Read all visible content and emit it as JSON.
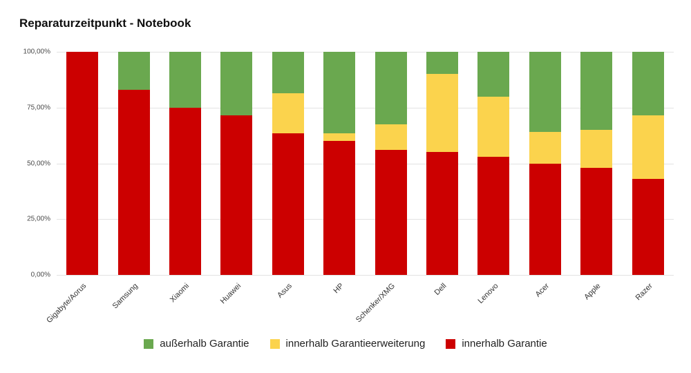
{
  "title": "Reparaturzeitpunkt - Notebook",
  "chart_data": {
    "type": "bar",
    "stacked": true,
    "title": "Reparaturzeitpunkt - Notebook",
    "xlabel": "",
    "ylabel": "",
    "ylim": [
      0,
      100
    ],
    "grid": true,
    "legend_position": "bottom",
    "categories": [
      "Gigabyte/Aorus",
      "Samsung",
      "Xiaomi",
      "Huawei",
      "Asus",
      "HP",
      "Schenker/XMG",
      "Dell",
      "Lenovo",
      "Acer",
      "Apple",
      "Razer"
    ],
    "series": [
      {
        "name": "innerhalb Garantie",
        "color": "#cc0000",
        "values": [
          100,
          83,
          75,
          71.5,
          63.5,
          60,
          56,
          55,
          53,
          50,
          48,
          43
        ]
      },
      {
        "name": "innerhalb Garantieerweiterung",
        "color": "#fbd34d",
        "values": [
          0,
          0,
          0,
          0,
          18,
          3.5,
          11.5,
          35,
          27,
          14,
          17,
          28.5
        ]
      },
      {
        "name": "außerhalb Garantie",
        "color": "#6aa84f",
        "values": [
          0,
          17,
          25,
          28.5,
          18.5,
          36.5,
          32.5,
          10,
          20,
          36,
          35,
          28.5
        ]
      }
    ],
    "y_ticks": [
      "100,00%",
      "75,00%",
      "50,00%",
      "25,00%",
      "0,00%"
    ]
  }
}
